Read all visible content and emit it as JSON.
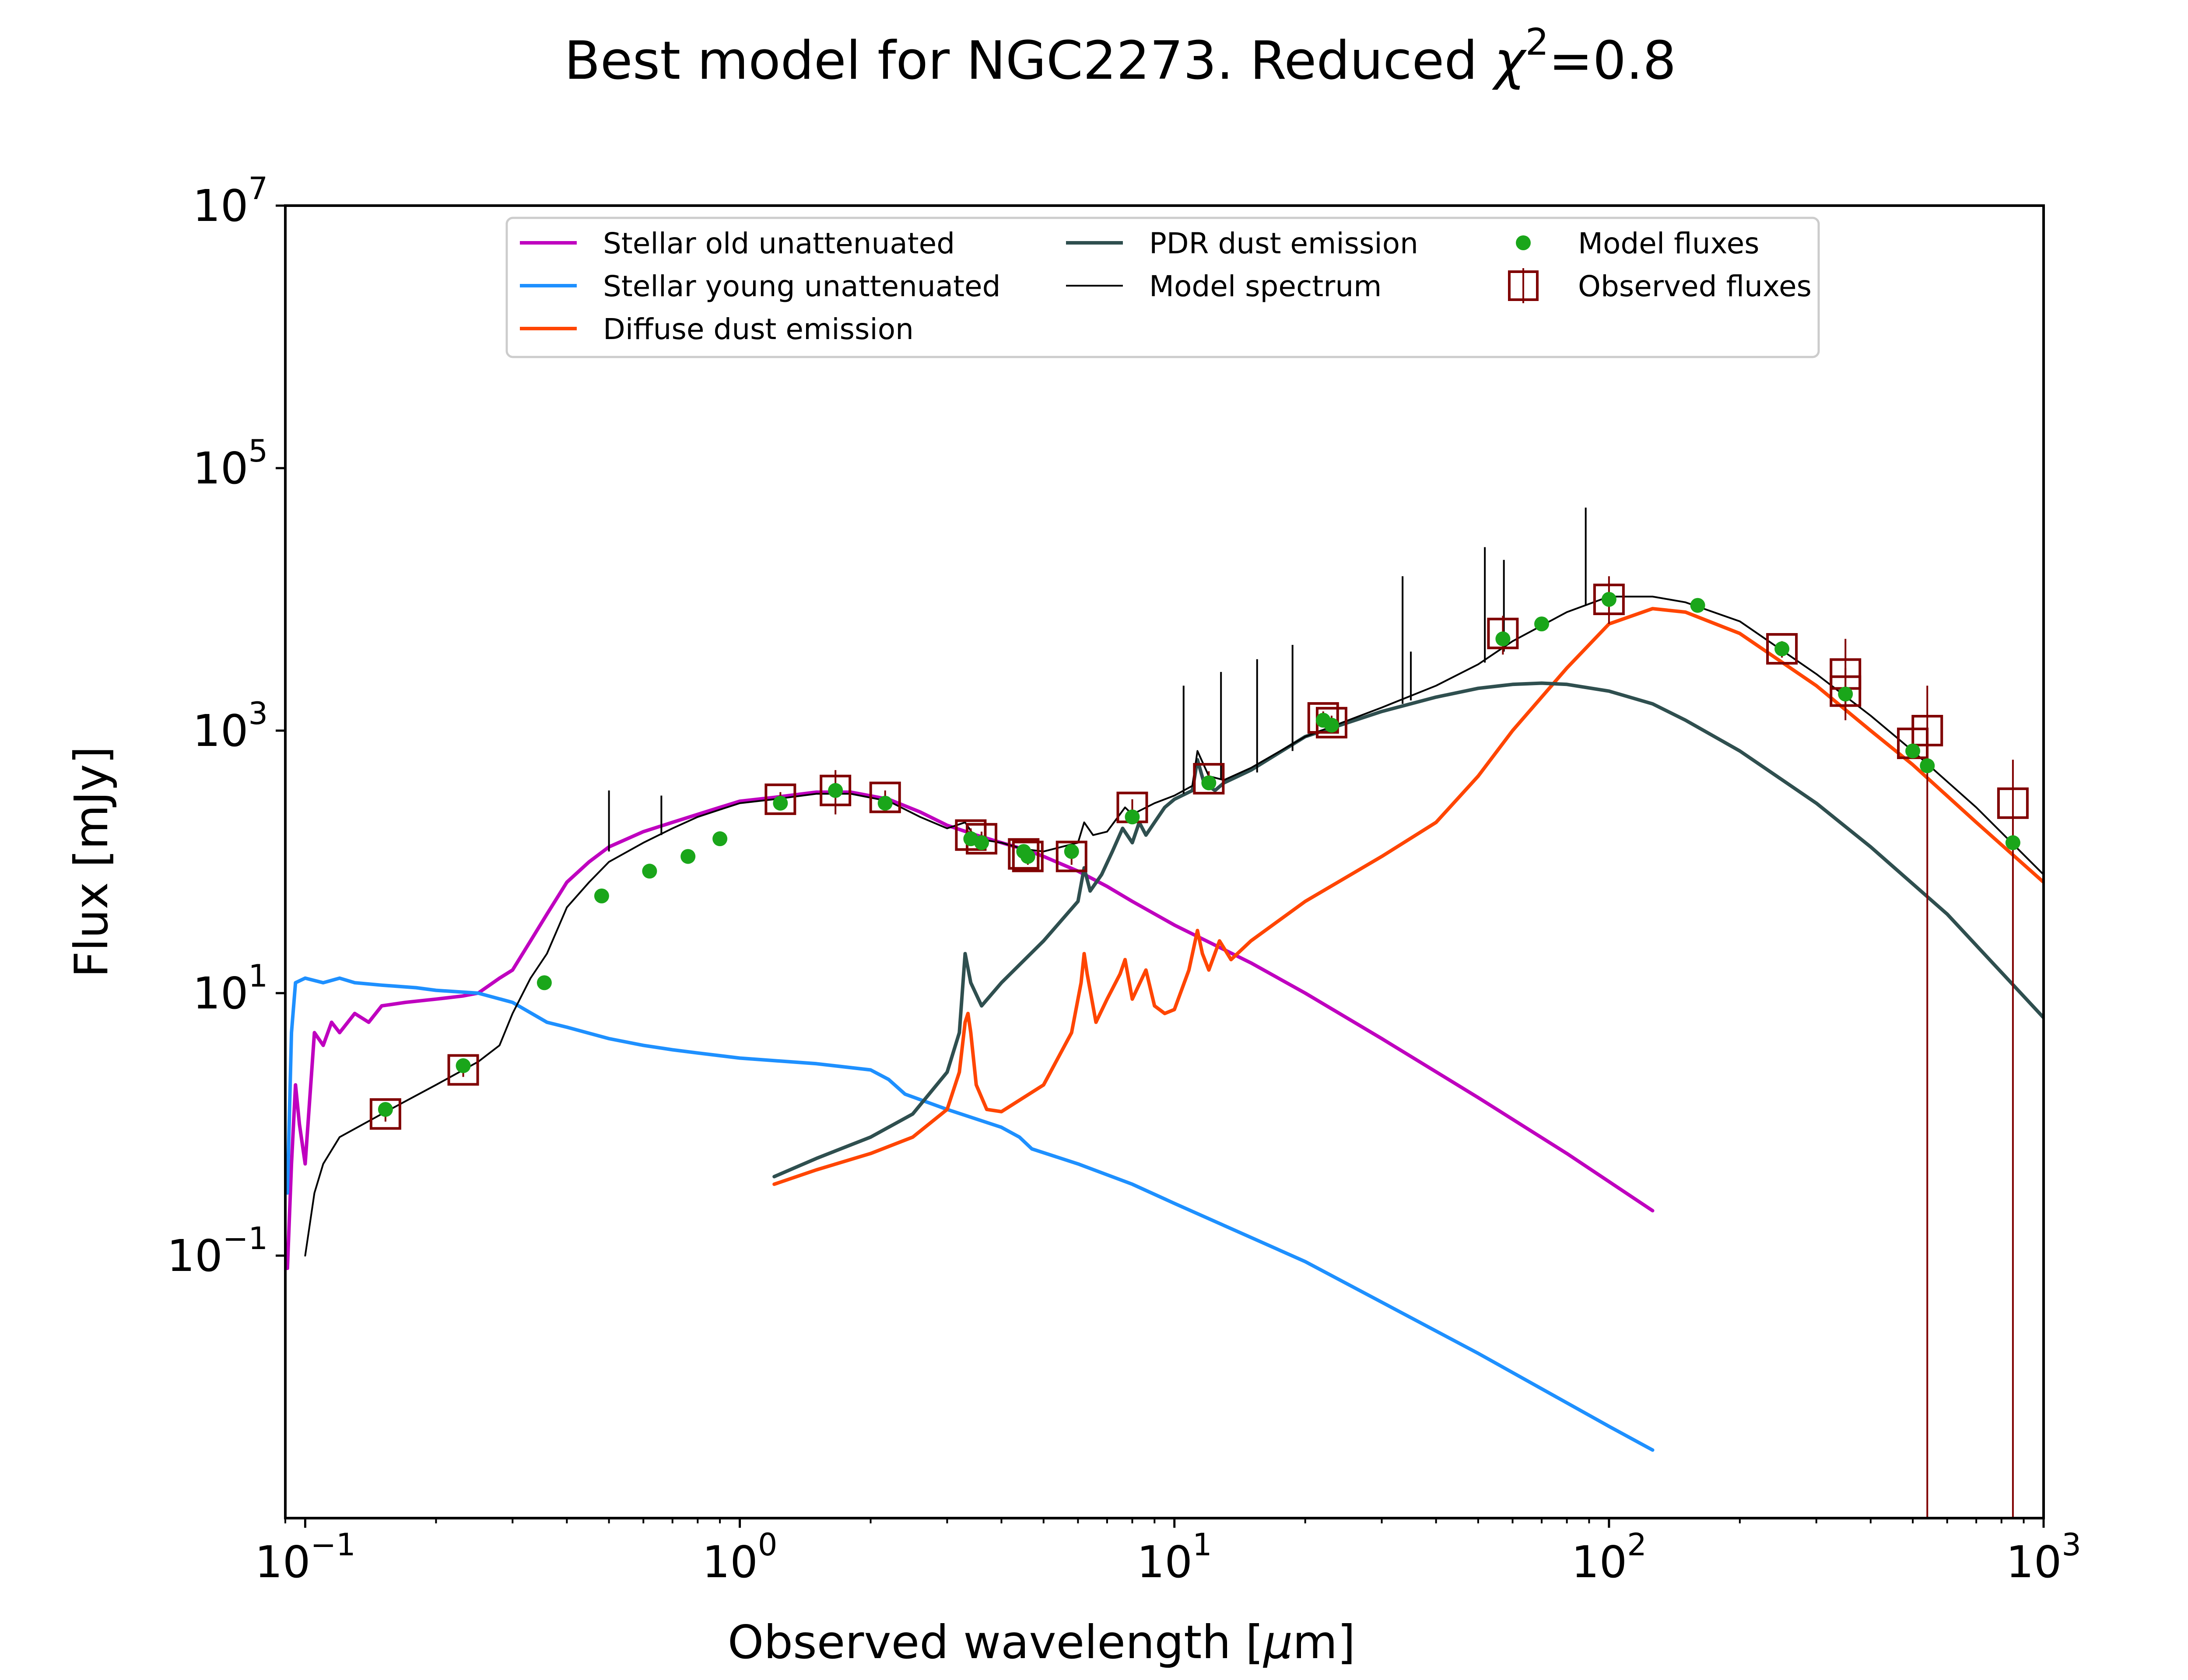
{
  "colors": {
    "old": "#bf00bf",
    "young": "#1e90ff",
    "diffuse": "#ff4500",
    "pdr": "#2f4f4f",
    "model": "#000000",
    "modelFluxes": "#1aa61a",
    "observed": "#800000"
  },
  "chart_data": {
    "type": "line",
    "title_main": "Best model for NGC2273. Reduced ",
    "title_chi": "χ",
    "title_sup": "2",
    "title_tail": "=0.8",
    "xlabel_main": "Observed wavelength [",
    "xlabel_mu": "μ",
    "xlabel_tail": "m]",
    "ylabel": "Flux [mJy]",
    "x_scale": "log",
    "y_scale": "log",
    "xlim": [
      0.09,
      1000
    ],
    "ylim": [
      0.001,
      10000000
    ],
    "grid": false,
    "legend_position": "top",
    "x_ticks": [
      {
        "base": "10",
        "exp": "−1",
        "value": 0.1
      },
      {
        "base": "10",
        "exp": "0",
        "value": 1
      },
      {
        "base": "10",
        "exp": "1",
        "value": 10
      },
      {
        "base": "10",
        "exp": "2",
        "value": 100
      },
      {
        "base": "10",
        "exp": "3",
        "value": 1000
      }
    ],
    "y_ticks": [
      {
        "base": "10",
        "exp": "−1",
        "value": 0.1
      },
      {
        "base": "10",
        "exp": "1",
        "value": 10
      },
      {
        "base": "10",
        "exp": "3",
        "value": 1000
      },
      {
        "base": "10",
        "exp": "5",
        "value": 100000
      },
      {
        "base": "10",
        "exp": "7",
        "value": 10000000
      }
    ],
    "legend": [
      {
        "label": "Stellar old unattenuated",
        "key": "old",
        "marker": "line"
      },
      {
        "label": "Stellar young unattenuated",
        "key": "young",
        "marker": "line"
      },
      {
        "label": "Diffuse dust emission",
        "key": "diffuse",
        "marker": "line"
      },
      {
        "label": "PDR dust emission",
        "key": "pdr",
        "marker": "line"
      },
      {
        "label": "Model spectrum",
        "key": "model",
        "marker": "thinline"
      },
      {
        "label": "Model fluxes",
        "key": "modelFluxes",
        "marker": "dot"
      },
      {
        "label": "Observed fluxes",
        "key": "observed",
        "marker": "square"
      }
    ],
    "series": [
      {
        "name": "Stellar old unattenuated",
        "key": "old",
        "points": [
          [
            0.091,
            0.08
          ],
          [
            0.093,
            0.5
          ],
          [
            0.095,
            2
          ],
          [
            0.097,
            1
          ],
          [
            0.1,
            0.5
          ],
          [
            0.105,
            5
          ],
          [
            0.11,
            4
          ],
          [
            0.115,
            6
          ],
          [
            0.12,
            5
          ],
          [
            0.13,
            7
          ],
          [
            0.14,
            6
          ],
          [
            0.15,
            8
          ],
          [
            0.17,
            8.5
          ],
          [
            0.2,
            9
          ],
          [
            0.23,
            9.5
          ],
          [
            0.25,
            10
          ],
          [
            0.28,
            13
          ],
          [
            0.3,
            15
          ],
          [
            0.33,
            25
          ],
          [
            0.36,
            40
          ],
          [
            0.4,
            70
          ],
          [
            0.45,
            100
          ],
          [
            0.5,
            130
          ],
          [
            0.6,
            170
          ],
          [
            0.7,
            200
          ],
          [
            0.8,
            230
          ],
          [
            0.9,
            260
          ],
          [
            1.0,
            290
          ],
          [
            1.2,
            310
          ],
          [
            1.5,
            340
          ],
          [
            1.8,
            340
          ],
          [
            2.2,
            300
          ],
          [
            2.6,
            240
          ],
          [
            3.0,
            190
          ],
          [
            3.5,
            160
          ],
          [
            4.0,
            140
          ],
          [
            4.5,
            125
          ],
          [
            5.0,
            110
          ],
          [
            6.0,
            85
          ],
          [
            7.0,
            65
          ],
          [
            8.0,
            50
          ],
          [
            10,
            33
          ],
          [
            15,
            17
          ],
          [
            20,
            10
          ],
          [
            30,
            4.5
          ],
          [
            50,
            1.6
          ],
          [
            80,
            0.6
          ],
          [
            126,
            0.22
          ]
        ]
      },
      {
        "name": "Stellar young unattenuated",
        "key": "young",
        "points": [
          [
            0.091,
            0.3
          ],
          [
            0.093,
            5
          ],
          [
            0.095,
            12
          ],
          [
            0.1,
            13
          ],
          [
            0.11,
            12
          ],
          [
            0.12,
            13
          ],
          [
            0.13,
            12
          ],
          [
            0.15,
            11.5
          ],
          [
            0.18,
            11
          ],
          [
            0.2,
            10.5
          ],
          [
            0.25,
            10
          ],
          [
            0.3,
            8.5
          ],
          [
            0.36,
            6
          ],
          [
            0.4,
            5.5
          ],
          [
            0.5,
            4.5
          ],
          [
            0.6,
            4
          ],
          [
            0.7,
            3.7
          ],
          [
            0.8,
            3.5
          ],
          [
            1.0,
            3.2
          ],
          [
            1.5,
            2.9
          ],
          [
            2.0,
            2.6
          ],
          [
            2.2,
            2.2
          ],
          [
            2.4,
            1.7
          ],
          [
            3.0,
            1.3
          ],
          [
            4.0,
            0.95
          ],
          [
            4.4,
            0.8
          ],
          [
            4.7,
            0.65
          ],
          [
            6.0,
            0.5
          ],
          [
            8.0,
            0.35
          ],
          [
            10,
            0.25
          ],
          [
            20,
            0.09
          ],
          [
            50,
            0.018
          ],
          [
            100,
            0.005
          ],
          [
            126,
            0.0033
          ]
        ]
      },
      {
        "name": "Diffuse dust emission",
        "key": "diffuse",
        "points": [
          [
            1.2,
            0.35
          ],
          [
            1.5,
            0.45
          ],
          [
            2.0,
            0.6
          ],
          [
            2.5,
            0.8
          ],
          [
            3.0,
            1.3
          ],
          [
            3.2,
            2.5
          ],
          [
            3.3,
            6
          ],
          [
            3.35,
            7
          ],
          [
            3.4,
            5
          ],
          [
            3.5,
            2
          ],
          [
            3.7,
            1.3
          ],
          [
            4.0,
            1.25
          ],
          [
            5.0,
            2
          ],
          [
            5.8,
            5
          ],
          [
            6.1,
            12
          ],
          [
            6.2,
            20
          ],
          [
            6.3,
            14
          ],
          [
            6.6,
            6
          ],
          [
            7.0,
            9
          ],
          [
            7.5,
            14
          ],
          [
            7.7,
            18
          ],
          [
            8.0,
            9
          ],
          [
            8.6,
            15
          ],
          [
            9.0,
            8
          ],
          [
            9.5,
            7
          ],
          [
            10,
            7.5
          ],
          [
            10.8,
            15
          ],
          [
            11.3,
            30
          ],
          [
            11.6,
            20
          ],
          [
            12.0,
            15
          ],
          [
            12.7,
            25
          ],
          [
            13.5,
            18
          ],
          [
            15,
            25
          ],
          [
            20,
            50
          ],
          [
            30,
            110
          ],
          [
            40,
            200
          ],
          [
            50,
            450
          ],
          [
            60,
            1000
          ],
          [
            80,
            3000
          ],
          [
            100,
            6500
          ],
          [
            126,
            8500
          ],
          [
            150,
            8000
          ],
          [
            200,
            5500
          ],
          [
            300,
            2200
          ],
          [
            400,
            1000
          ],
          [
            500,
            550
          ],
          [
            700,
            200
          ],
          [
            1000,
            70
          ]
        ]
      },
      {
        "name": "PDR dust emission",
        "key": "pdr",
        "points": [
          [
            1.2,
            0.4
          ],
          [
            1.5,
            0.55
          ],
          [
            2.0,
            0.8
          ],
          [
            2.5,
            1.2
          ],
          [
            3.0,
            2.5
          ],
          [
            3.2,
            5
          ],
          [
            3.3,
            20
          ],
          [
            3.4,
            12
          ],
          [
            3.6,
            8
          ],
          [
            4.0,
            12
          ],
          [
            5.0,
            25
          ],
          [
            6.0,
            50
          ],
          [
            6.2,
            90
          ],
          [
            6.4,
            60
          ],
          [
            6.8,
            80
          ],
          [
            7.2,
            120
          ],
          [
            7.6,
            180
          ],
          [
            8.0,
            140
          ],
          [
            8.3,
            200
          ],
          [
            8.6,
            160
          ],
          [
            9.0,
            200
          ],
          [
            9.5,
            260
          ],
          [
            10,
            300
          ],
          [
            11,
            350
          ],
          [
            11.3,
            600
          ],
          [
            11.7,
            400
          ],
          [
            12.4,
            350
          ],
          [
            13,
            400
          ],
          [
            15,
            500
          ],
          [
            20,
            900
          ],
          [
            30,
            1400
          ],
          [
            40,
            1800
          ],
          [
            50,
            2100
          ],
          [
            60,
            2250
          ],
          [
            70,
            2300
          ],
          [
            80,
            2250
          ],
          [
            100,
            2000
          ],
          [
            126,
            1600
          ],
          [
            150,
            1200
          ],
          [
            200,
            700
          ],
          [
            300,
            280
          ],
          [
            400,
            130
          ],
          [
            600,
            40
          ],
          [
            1000,
            6.5
          ]
        ]
      },
      {
        "name": "Model spectrum",
        "key": "model",
        "points": [
          [
            0.1,
            0.1
          ],
          [
            0.105,
            0.3
          ],
          [
            0.11,
            0.5
          ],
          [
            0.12,
            0.8
          ],
          [
            0.15,
            1.2
          ],
          [
            0.2,
            2
          ],
          [
            0.25,
            3
          ],
          [
            0.28,
            4
          ],
          [
            0.3,
            7
          ],
          [
            0.33,
            13
          ],
          [
            0.36,
            20
          ],
          [
            0.4,
            45
          ],
          [
            0.45,
            70
          ],
          [
            0.5,
            100
          ],
          [
            0.6,
            140
          ],
          [
            0.7,
            180
          ],
          [
            0.8,
            220
          ],
          [
            0.9,
            250
          ],
          [
            1.0,
            280
          ],
          [
            1.2,
            300
          ],
          [
            1.5,
            330
          ],
          [
            1.8,
            330
          ],
          [
            2.2,
            290
          ],
          [
            2.6,
            220
          ],
          [
            3.0,
            180
          ],
          [
            3.3,
            200
          ],
          [
            3.5,
            150
          ],
          [
            4.0,
            140
          ],
          [
            4.5,
            125
          ],
          [
            5.0,
            120
          ],
          [
            6.0,
            140
          ],
          [
            6.2,
            200
          ],
          [
            6.5,
            160
          ],
          [
            7.0,
            170
          ],
          [
            7.7,
            260
          ],
          [
            8.0,
            230
          ],
          [
            9.0,
            280
          ],
          [
            10,
            320
          ],
          [
            11,
            380
          ],
          [
            11.3,
            700
          ],
          [
            12,
            450
          ],
          [
            13,
            420
          ],
          [
            15,
            520
          ],
          [
            20,
            900
          ],
          [
            30,
            1500
          ],
          [
            40,
            2200
          ],
          [
            50,
            3200
          ],
          [
            60,
            4800
          ],
          [
            80,
            8000
          ],
          [
            100,
            10500
          ],
          [
            126,
            10500
          ],
          [
            150,
            9500
          ],
          [
            200,
            6800
          ],
          [
            300,
            2700
          ],
          [
            400,
            1300
          ],
          [
            500,
            700
          ],
          [
            700,
            260
          ],
          [
            1000,
            80
          ]
        ]
      }
    ],
    "emission_lines": [
      [
        0.5,
        120,
        350
      ],
      [
        0.66,
        160,
        320
      ],
      [
        2.0,
        260,
        330
      ],
      [
        10.5,
        330,
        2200
      ],
      [
        12.8,
        420,
        2800
      ],
      [
        15.5,
        480,
        3500
      ],
      [
        18.7,
        700,
        4500
      ],
      [
        33.5,
        1600,
        15000
      ],
      [
        35,
        1700,
        4000
      ],
      [
        51.8,
        3300,
        25000
      ],
      [
        57.3,
        4000,
        20000
      ],
      [
        88.4,
        9000,
        50000
      ]
    ],
    "model_fluxes": [
      [
        0.153,
        1.3
      ],
      [
        0.231,
        2.8
      ],
      [
        0.355,
        12
      ],
      [
        0.481,
        55
      ],
      [
        0.62,
        85
      ],
      [
        0.76,
        110
      ],
      [
        0.9,
        150
      ],
      [
        1.24,
        280
      ],
      [
        1.66,
        350
      ],
      [
        2.16,
        280
      ],
      [
        3.4,
        150
      ],
      [
        3.6,
        140
      ],
      [
        4.5,
        120
      ],
      [
        4.6,
        110
      ],
      [
        5.8,
        120
      ],
      [
        8.0,
        220
      ],
      [
        12,
        400
      ],
      [
        22,
        1200
      ],
      [
        23,
        1100
      ],
      [
        57,
        5000
      ],
      [
        70,
        6500
      ],
      [
        100,
        10000
      ],
      [
        160,
        9000
      ],
      [
        250,
        4200
      ],
      [
        350,
        1900
      ],
      [
        500,
        700
      ],
      [
        540,
        540
      ],
      [
        850,
        140
      ]
    ],
    "observed_fluxes": [
      [
        0.153,
        1.2,
        1.05,
        1.35
      ],
      [
        0.231,
        2.6,
        2.3,
        2.9
      ],
      [
        1.24,
        300,
        260,
        340
      ],
      [
        1.66,
        350,
        230,
        500
      ],
      [
        2.16,
        310,
        270,
        350
      ],
      [
        3.4,
        160,
        140,
        180
      ],
      [
        3.6,
        150,
        130,
        170
      ],
      [
        4.5,
        115,
        100,
        130
      ],
      [
        4.6,
        110,
        95,
        125
      ],
      [
        5.8,
        110,
        95,
        125
      ],
      [
        8.0,
        260,
        220,
        300
      ],
      [
        12,
        430,
        370,
        490
      ],
      [
        22,
        1250,
        1100,
        1400
      ],
      [
        23,
        1150,
        1000,
        1300
      ],
      [
        57,
        5500,
        3800,
        7500
      ],
      [
        100,
        10000,
        6500,
        15000
      ],
      [
        250,
        4200,
        3600,
        4800
      ],
      [
        350,
        2700,
        1400,
        5000
      ],
      [
        350,
        2000,
        1200,
        3000
      ],
      [
        500,
        800,
        640,
        960
      ],
      [
        540,
        1000,
        0.001,
        2200
      ],
      [
        850,
        280,
        0.001,
        600
      ]
    ]
  }
}
